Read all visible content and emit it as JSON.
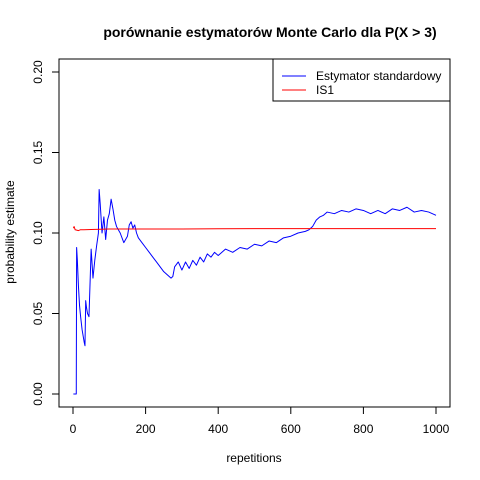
{
  "chart_data": {
    "type": "line",
    "title": "porównanie estymatorów Monte Carlo dla P(X > 3)",
    "xlabel": "repetitions",
    "ylabel": "probability estimate",
    "xlim": [
      0,
      1000
    ],
    "ylim": [
      0,
      0.2
    ],
    "x_ticks": [
      0,
      200,
      400,
      600,
      800,
      1000
    ],
    "x_tick_labels": [
      "0",
      "200",
      "400",
      "600",
      "800",
      "1000"
    ],
    "y_ticks": [
      0,
      0.05,
      0.1,
      0.15,
      0.2
    ],
    "y_tick_labels": [
      "0.00",
      "0.05",
      "0.10",
      "0.15",
      "0.20"
    ],
    "grid": false,
    "legend_position": "top-right",
    "series": [
      {
        "name": "Estymator standardowy",
        "color": "#0000ff",
        "x": [
          1,
          9,
          10,
          12,
          15,
          18,
          21,
          25,
          28,
          31,
          33,
          35,
          37,
          40,
          44,
          50,
          55,
          60,
          65,
          70,
          72,
          75,
          80,
          85,
          90,
          95,
          100,
          105,
          110,
          115,
          120,
          130,
          140,
          150,
          155,
          160,
          165,
          170,
          175,
          180,
          190,
          200,
          210,
          220,
          230,
          240,
          250,
          260,
          270,
          275,
          280,
          290,
          300,
          310,
          320,
          330,
          340,
          350,
          360,
          370,
          380,
          390,
          400,
          420,
          440,
          460,
          480,
          500,
          520,
          540,
          560,
          580,
          600,
          620,
          640,
          650,
          660,
          670,
          680,
          690,
          700,
          720,
          740,
          760,
          780,
          800,
          820,
          840,
          860,
          880,
          900,
          920,
          940,
          960,
          980,
          1000
        ],
        "y": [
          0,
          0,
          0.091,
          0.083,
          0.067,
          0.055,
          0.048,
          0.04,
          0.036,
          0.032,
          0.03,
          0.058,
          0.054,
          0.05,
          0.048,
          0.09,
          0.072,
          0.083,
          0.092,
          0.1,
          0.127,
          0.118,
          0.1,
          0.11,
          0.096,
          0.108,
          0.112,
          0.121,
          0.115,
          0.108,
          0.104,
          0.1,
          0.094,
          0.098,
          0.105,
          0.107,
          0.103,
          0.105,
          0.1,
          0.097,
          0.094,
          0.091,
          0.088,
          0.085,
          0.082,
          0.079,
          0.076,
          0.074,
          0.072,
          0.073,
          0.079,
          0.082,
          0.077,
          0.082,
          0.078,
          0.083,
          0.08,
          0.085,
          0.082,
          0.087,
          0.085,
          0.088,
          0.086,
          0.09,
          0.088,
          0.091,
          0.09,
          0.093,
          0.092,
          0.095,
          0.094,
          0.097,
          0.098,
          0.1,
          0.101,
          0.102,
          0.104,
          0.108,
          0.11,
          0.111,
          0.113,
          0.112,
          0.114,
          0.113,
          0.115,
          0.114,
          0.112,
          0.114,
          0.112,
          0.115,
          0.114,
          0.116,
          0.113,
          0.114,
          0.113,
          0.111
        ]
      },
      {
        "name": "IS1",
        "color": "#ff0000",
        "x": [
          1,
          3,
          6,
          10,
          15,
          20,
          30,
          50,
          100,
          200,
          300,
          400,
          500,
          600,
          700,
          800,
          900,
          1000
        ],
        "y": [
          0.103,
          0.104,
          0.102,
          0.1018,
          0.1015,
          0.102,
          0.102,
          0.1022,
          0.1025,
          0.1025,
          0.1025,
          0.1026,
          0.1027,
          0.1027,
          0.1027,
          0.1027,
          0.1027,
          0.1027
        ]
      }
    ]
  }
}
